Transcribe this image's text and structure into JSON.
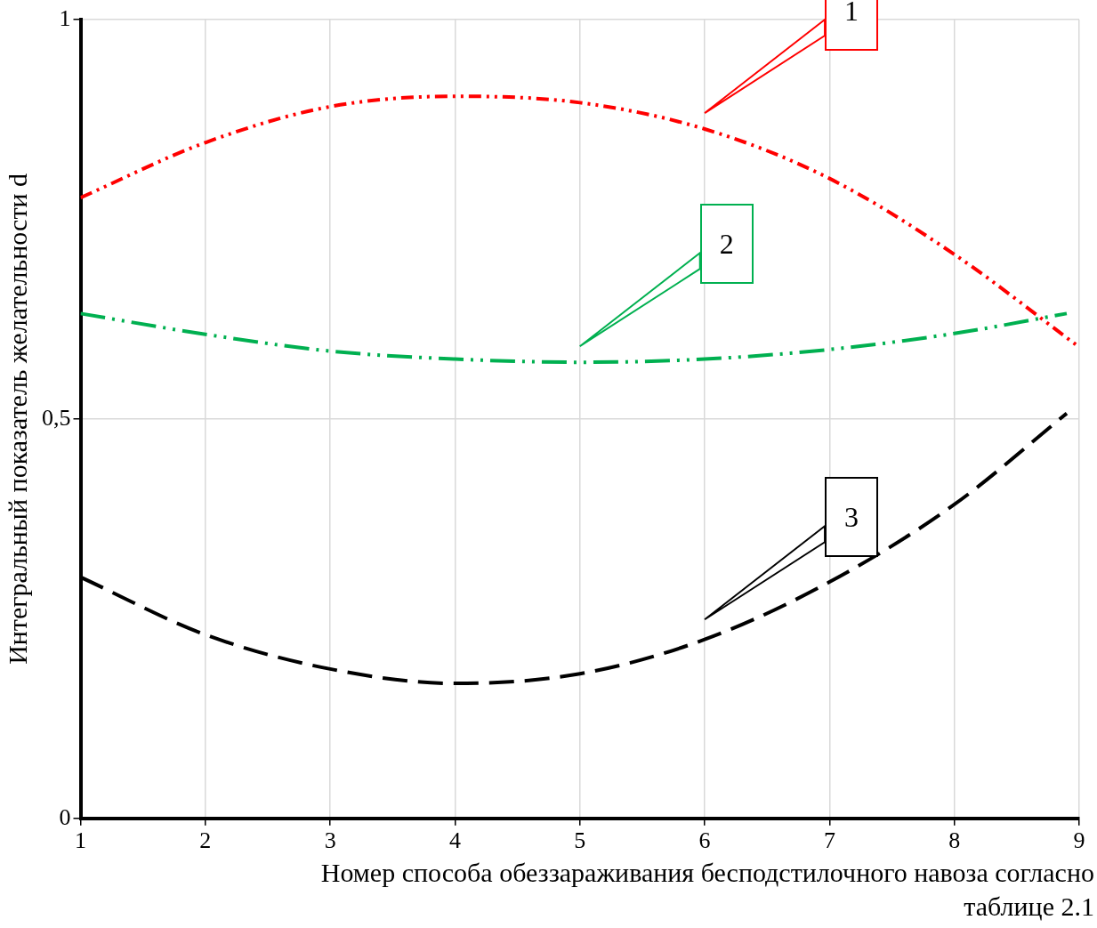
{
  "chart_data": {
    "type": "line",
    "xlabel": "Номер способа обеззараживания бесподстилочного навоза согласно таблице 2.1",
    "ylabel": "Интегральный показатель желательности d",
    "x": [
      1,
      2,
      3,
      4,
      5,
      6,
      7,
      8,
      9
    ],
    "series": [
      {
        "color": "#ff0000",
        "line_style": "dashed",
        "values": [
          0.777,
          0.846,
          0.891,
          0.904,
          0.896,
          0.863,
          0.801,
          0.706,
          0.59
        ]
      },
      {
        "color": "#00b050",
        "line_style": "dashed",
        "x": [
          1,
          2,
          3,
          4,
          5,
          6,
          7,
          8,
          8.9
        ],
        "values": [
          0.632,
          0.606,
          0.585,
          0.575,
          0.571,
          0.575,
          0.587,
          0.607,
          0.632
        ]
      },
      {
        "color": "#000000",
        "line_style": "dashed",
        "x": [
          1,
          2,
          3,
          4,
          5,
          6,
          7,
          8,
          8.9
        ],
        "values": [
          0.302,
          0.23,
          0.187,
          0.169,
          0.181,
          0.224,
          0.296,
          0.393,
          0.507
        ]
      }
    ],
    "xlim": [
      1,
      9
    ],
    "xticks": [
      1,
      2,
      3,
      4,
      5,
      6,
      7,
      8,
      9
    ],
    "ylim": [
      0,
      1
    ],
    "yticks": [
      0,
      {
        "value": 0.5,
        "label": "0,5"
      },
      1
    ],
    "grid": true,
    "legend": false,
    "marker": "none",
    "annotations": [
      "1",
      "2",
      "3"
    ]
  }
}
